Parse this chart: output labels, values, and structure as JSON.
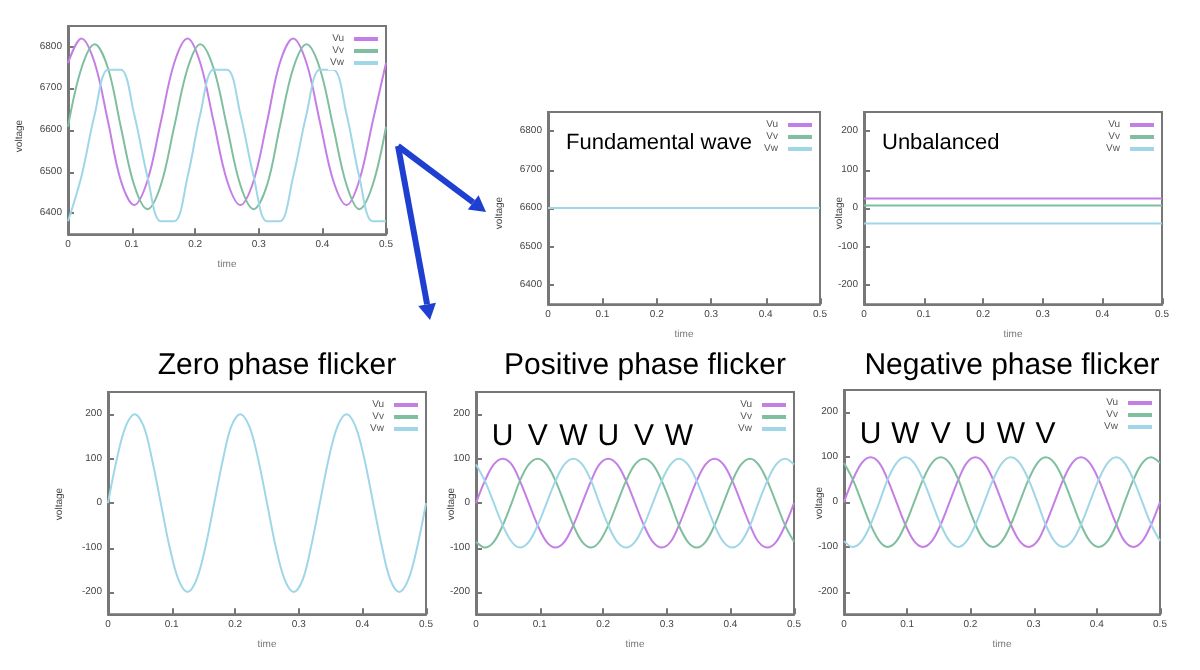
{
  "chart_data": [
    {
      "type": "line",
      "xlabel": "time",
      "ylabel": "voltage",
      "x": [
        0,
        0.021,
        0.042,
        0.063,
        0.083,
        0.104,
        0.125,
        0.146,
        0.167,
        0.188,
        0.208,
        0.229,
        0.25,
        0.271,
        0.292,
        0.313,
        0.333,
        0.354,
        0.375,
        0.396,
        0.417,
        0.438,
        0.458,
        0.479,
        0.5
      ],
      "xlim": [
        0,
        0.5
      ],
      "xticks": [
        0,
        0.1,
        0.2,
        0.3,
        0.4,
        0.5
      ],
      "ylim": [
        6350,
        6850
      ],
      "yticks": [
        6400,
        6500,
        6600,
        6700,
        6800
      ],
      "legend": "top right",
      "marker": "none",
      "series": [
        {
          "name": "Vu",
          "color": "#c47fe6",
          "values": [
            6761,
            6820,
            6761,
            6620,
            6479,
            6420,
            6479,
            6620,
            6761,
            6820,
            6761,
            6620,
            6479,
            6420,
            6479,
            6620,
            6761,
            6820,
            6761,
            6620,
            6479,
            6420,
            6479,
            6620,
            6761
          ]
        },
        {
          "name": "Vv",
          "color": "#7fbf9f",
          "values": [
            6608,
            6748,
            6806,
            6748,
            6608,
            6468,
            6410,
            6468,
            6608,
            6748,
            6806,
            6748,
            6608,
            6468,
            6410,
            6468,
            6608,
            6748,
            6806,
            6748,
            6608,
            6468,
            6410,
            6468,
            6608
          ]
        },
        {
          "name": "Vw",
          "color": "#9fd6e8",
          "values": [
            6381,
            6488,
            6638,
            6745,
            6745,
            6638,
            6488,
            6381,
            6381,
            6488,
            6638,
            6745,
            6745,
            6638,
            6488,
            6381,
            6381,
            6488,
            6638,
            6745,
            6745,
            6638,
            6488,
            6381,
            6381
          ]
        }
      ]
    },
    {
      "type": "line",
      "title": "Fundamental wave",
      "xlabel": "time",
      "ylabel": "voltage",
      "x": [
        0,
        0.5
      ],
      "xlim": [
        0,
        0.5
      ],
      "xticks": [
        0,
        0.1,
        0.2,
        0.3,
        0.4,
        0.5
      ],
      "ylim": [
        6350,
        6850
      ],
      "yticks": [
        6400,
        6500,
        6600,
        6700,
        6800
      ],
      "legend": "top right",
      "marker": "none",
      "series": [
        {
          "name": "Vu",
          "color": "#c47fe6",
          "values": [
            null,
            null
          ]
        },
        {
          "name": "Vv",
          "color": "#7fbf9f",
          "values": [
            null,
            null
          ]
        },
        {
          "name": "Vw",
          "color": "#9fd6e8",
          "values": [
            6600,
            6600
          ]
        }
      ]
    },
    {
      "type": "line",
      "title": "Unbalanced",
      "xlabel": "time",
      "ylabel": "voltage",
      "x": [
        0,
        0.5
      ],
      "xlim": [
        0,
        0.5
      ],
      "xticks": [
        0,
        0.1,
        0.2,
        0.3,
        0.4,
        0.5
      ],
      "ylim": [
        -250,
        250
      ],
      "yticks": [
        -200,
        -100,
        0,
        100,
        200
      ],
      "legend": "top right",
      "marker": "none",
      "series": [
        {
          "name": "Vu",
          "color": "#c47fe6",
          "values": [
            25,
            25
          ]
        },
        {
          "name": "Vv",
          "color": "#7fbf9f",
          "values": [
            7,
            7
          ]
        },
        {
          "name": "Vw",
          "color": "#9fd6e8",
          "values": [
            -40,
            -40
          ]
        }
      ]
    },
    {
      "type": "line",
      "title": "Zero phase flicker",
      "xlabel": "time",
      "ylabel": "voltage",
      "x": [
        0,
        0.014,
        0.028,
        0.042,
        0.056,
        0.069,
        0.083,
        0.097,
        0.111,
        0.125,
        0.139,
        0.153,
        0.167,
        0.181,
        0.194,
        0.208,
        0.222,
        0.236,
        0.25,
        0.264,
        0.278,
        0.292,
        0.306,
        0.319,
        0.333,
        0.347,
        0.361,
        0.375,
        0.389,
        0.403,
        0.417,
        0.431,
        0.444,
        0.458,
        0.472,
        0.486,
        0.5
      ],
      "xlim": [
        0,
        0.5
      ],
      "xticks": [
        0,
        0.1,
        0.2,
        0.3,
        0.4,
        0.5
      ],
      "ylim": [
        -250,
        250
      ],
      "yticks": [
        -200,
        -100,
        0,
        100,
        200
      ],
      "legend": "top right",
      "marker": "none",
      "series": [
        {
          "name": "Vu",
          "color": "#c47fe6",
          "values": [
            null,
            null,
            null,
            null,
            null,
            null,
            null,
            null,
            null,
            null,
            null,
            null,
            null,
            null,
            null,
            null,
            null,
            null,
            null,
            null,
            null,
            null,
            null,
            null,
            null,
            null,
            null,
            null,
            null,
            null,
            null,
            null,
            null,
            null,
            null,
            null,
            null
          ]
        },
        {
          "name": "Vv",
          "color": "#7fbf9f",
          "values": [
            null,
            null,
            null,
            null,
            null,
            null,
            null,
            null,
            null,
            null,
            null,
            null,
            null,
            null,
            null,
            null,
            null,
            null,
            null,
            null,
            null,
            null,
            null,
            null,
            null,
            null,
            null,
            null,
            null,
            null,
            null,
            null,
            null,
            null,
            null,
            null,
            null
          ]
        },
        {
          "name": "Vw",
          "color": "#9fd6e8",
          "values": [
            0,
            100,
            173,
            200,
            173,
            100,
            0,
            -100,
            -173,
            -200,
            -173,
            -100,
            0,
            100,
            173,
            200,
            173,
            100,
            0,
            -100,
            -173,
            -200,
            -173,
            -100,
            0,
            100,
            173,
            200,
            173,
            100,
            0,
            -100,
            -173,
            -200,
            -173,
            -100,
            0
          ]
        }
      ]
    },
    {
      "type": "line",
      "title": "Positive phase flicker",
      "xlabel": "time",
      "ylabel": "voltage",
      "x": [
        0,
        0.014,
        0.028,
        0.042,
        0.056,
        0.069,
        0.083,
        0.097,
        0.111,
        0.125,
        0.139,
        0.153,
        0.167,
        0.181,
        0.194,
        0.208,
        0.222,
        0.236,
        0.25,
        0.264,
        0.278,
        0.292,
        0.306,
        0.319,
        0.333,
        0.347,
        0.361,
        0.375,
        0.389,
        0.403,
        0.417,
        0.431,
        0.444,
        0.458,
        0.472,
        0.486,
        0.5
      ],
      "xlim": [
        0,
        0.5
      ],
      "xticks": [
        0,
        0.1,
        0.2,
        0.3,
        0.4,
        0.5
      ],
      "ylim": [
        -250,
        250
      ],
      "yticks": [
        -200,
        -100,
        0,
        100,
        200
      ],
      "legend": "top right",
      "marker": "none",
      "annotations": [
        {
          "text": "U",
          "x": 0.042,
          "y": 100
        },
        {
          "text": "V",
          "x": 0.097,
          "y": 100
        },
        {
          "text": "W",
          "x": 0.153,
          "y": 100
        },
        {
          "text": "U",
          "x": 0.208,
          "y": 100
        },
        {
          "text": "V",
          "x": 0.264,
          "y": 100
        },
        {
          "text": "W",
          "x": 0.319,
          "y": 100
        }
      ],
      "series": [
        {
          "name": "Vu",
          "color": "#c47fe6",
          "values": [
            0,
            50,
            87,
            100,
            87,
            50,
            0,
            -50,
            -87,
            -100,
            -87,
            -50,
            0,
            50,
            87,
            100,
            87,
            50,
            0,
            -50,
            -87,
            -100,
            -87,
            -50,
            0,
            50,
            87,
            100,
            87,
            50,
            0,
            -50,
            -87,
            -100,
            -87,
            -50,
            0
          ]
        },
        {
          "name": "Vv",
          "color": "#7fbf9f",
          "values": [
            -87,
            -100,
            -87,
            -50,
            0,
            50,
            87,
            100,
            87,
            50,
            0,
            -50,
            -87,
            -100,
            -87,
            -50,
            0,
            50,
            87,
            100,
            87,
            50,
            0,
            -50,
            -87,
            -100,
            -87,
            -50,
            0,
            50,
            87,
            100,
            87,
            50,
            0,
            -50,
            -87
          ]
        },
        {
          "name": "Vw",
          "color": "#9fd6e8",
          "values": [
            87,
            50,
            0,
            -50,
            -87,
            -100,
            -87,
            -50,
            0,
            50,
            87,
            100,
            87,
            50,
            0,
            -50,
            -87,
            -100,
            -87,
            -50,
            0,
            50,
            87,
            100,
            87,
            50,
            0,
            -50,
            -87,
            -100,
            -87,
            -50,
            0,
            50,
            87,
            100,
            87
          ]
        }
      ]
    },
    {
      "type": "line",
      "title": "Negative phase flicker",
      "xlabel": "time",
      "ylabel": "voltage",
      "x": [
        0,
        0.014,
        0.028,
        0.042,
        0.056,
        0.069,
        0.083,
        0.097,
        0.111,
        0.125,
        0.139,
        0.153,
        0.167,
        0.181,
        0.194,
        0.208,
        0.222,
        0.236,
        0.25,
        0.264,
        0.278,
        0.292,
        0.306,
        0.319,
        0.333,
        0.347,
        0.361,
        0.375,
        0.389,
        0.403,
        0.417,
        0.431,
        0.444,
        0.458,
        0.472,
        0.486,
        0.5
      ],
      "xlim": [
        0,
        0.5
      ],
      "xticks": [
        0,
        0.1,
        0.2,
        0.3,
        0.4,
        0.5
      ],
      "ylim": [
        -250,
        250
      ],
      "yticks": [
        -200,
        -100,
        0,
        100,
        200
      ],
      "legend": "top right",
      "marker": "none",
      "annotations": [
        {
          "text": "U",
          "x": 0.042,
          "y": 100
        },
        {
          "text": "W",
          "x": 0.097,
          "y": 100
        },
        {
          "text": "V",
          "x": 0.153,
          "y": 100
        },
        {
          "text": "U",
          "x": 0.208,
          "y": 100
        },
        {
          "text": "W",
          "x": 0.264,
          "y": 100
        },
        {
          "text": "V",
          "x": 0.319,
          "y": 100
        }
      ],
      "series": [
        {
          "name": "Vu",
          "color": "#c47fe6",
          "values": [
            0,
            50,
            87,
            100,
            87,
            50,
            0,
            -50,
            -87,
            -100,
            -87,
            -50,
            0,
            50,
            87,
            100,
            87,
            50,
            0,
            -50,
            -87,
            -100,
            -87,
            -50,
            0,
            50,
            87,
            100,
            87,
            50,
            0,
            -50,
            -87,
            -100,
            -87,
            -50,
            0
          ]
        },
        {
          "name": "Vv",
          "color": "#7fbf9f",
          "values": [
            87,
            50,
            0,
            -50,
            -87,
            -100,
            -87,
            -50,
            0,
            50,
            87,
            100,
            87,
            50,
            0,
            -50,
            -87,
            -100,
            -87,
            -50,
            0,
            50,
            87,
            100,
            87,
            50,
            0,
            -50,
            -87,
            -100,
            -87,
            -50,
            0,
            50,
            87,
            100,
            87
          ]
        },
        {
          "name": "Vw",
          "color": "#9fd6e8",
          "values": [
            -87,
            -100,
            -87,
            -50,
            0,
            50,
            87,
            100,
            87,
            50,
            0,
            -50,
            -87,
            -100,
            -87,
            -50,
            0,
            50,
            87,
            100,
            87,
            50,
            0,
            -50,
            -87,
            -100,
            -87,
            -50,
            0,
            50,
            87,
            100,
            87,
            50,
            0,
            -50,
            -87
          ]
        }
      ]
    }
  ]
}
